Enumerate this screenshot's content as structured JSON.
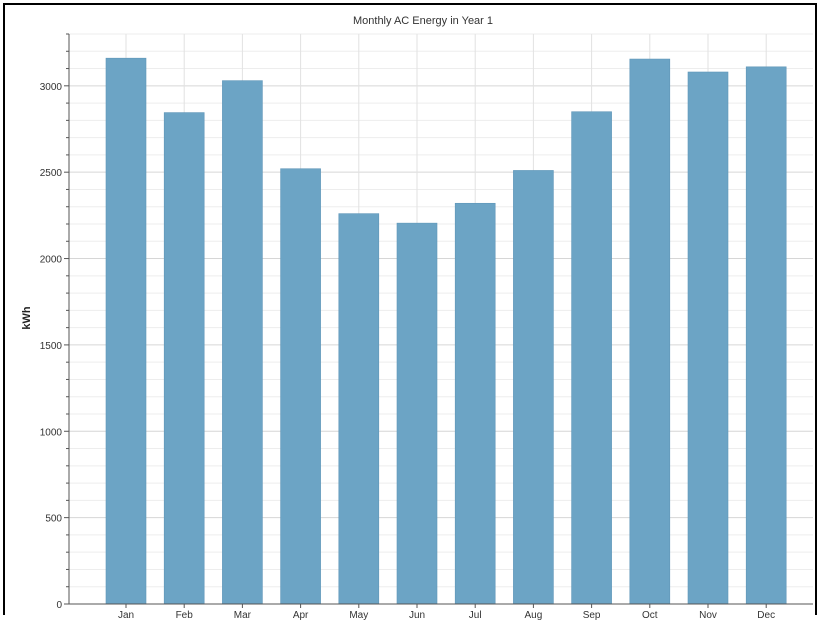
{
  "chart_data": {
    "type": "bar",
    "title": "Monthly AC Energy in Year 1",
    "xlabel": "",
    "ylabel": "kWh",
    "categories": [
      "Jan",
      "Feb",
      "Mar",
      "Apr",
      "May",
      "Jun",
      "Jul",
      "Aug",
      "Sep",
      "Oct",
      "Nov",
      "Dec"
    ],
    "values": [
      3160,
      2845,
      3030,
      2520,
      2260,
      2205,
      2320,
      2510,
      2850,
      3155,
      3080,
      3110
    ],
    "ylim": [
      0,
      3300
    ],
    "yticks": [
      0,
      500,
      1000,
      1500,
      2000,
      2500,
      3000
    ],
    "ytick_labels": [
      "0",
      "500",
      "1000",
      "1500",
      "2000",
      "2500",
      "3000"
    ],
    "grid": true,
    "bar_color": "#6ca4c5"
  }
}
